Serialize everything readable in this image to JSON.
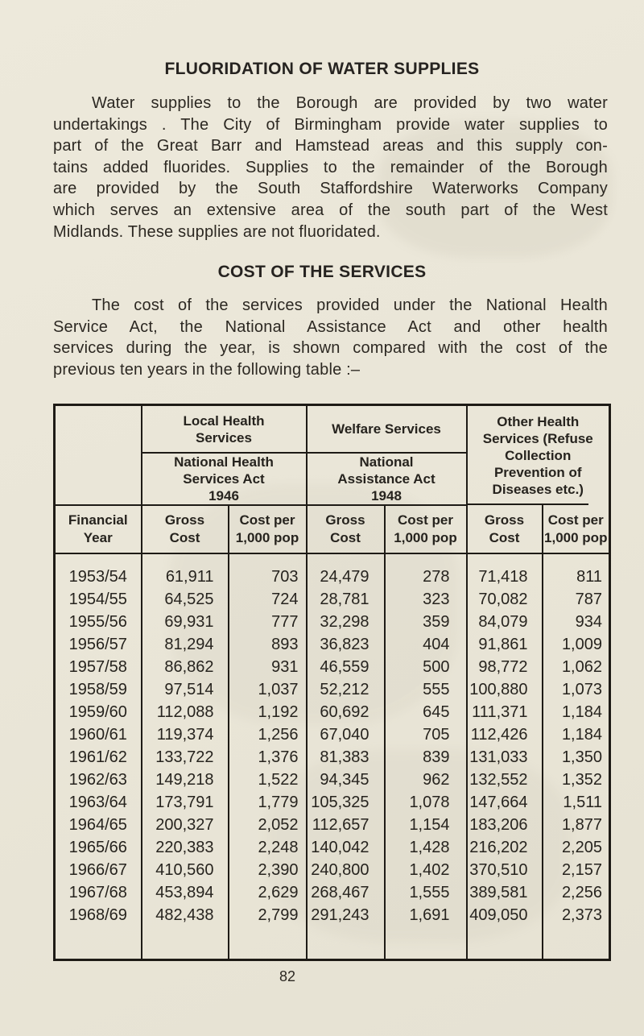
{
  "page": {
    "number": "82"
  },
  "colors": {
    "paper": "#eae6d8",
    "ink": "#2c2822",
    "table_border": "#1e1b16"
  },
  "sections": {
    "fluoridation": {
      "title": "FLUORIDATION OF WATER SUPPLIES",
      "lines": [
        "Water supplies to the Borough are provided by two water",
        "undertakings . The City of Birmingham provide water supplies to",
        "part of the Great Barr and Hamstead areas and this supply con-",
        "tains added fluorides. Supplies to the remainder of the Borough",
        "are provided by the South Staffordshire Waterworks Company",
        "which serves an extensive area of the south part of the West",
        "Midlands. These supplies are not fluoridated."
      ]
    },
    "cost": {
      "title": "COST OF THE SERVICES",
      "lines": [
        "The cost of the services provided under the National Health",
        "Service Act, the National Assistance Act and other health",
        "services during the year, is shown compared with the cost of the",
        "previous ten years in the following table :–"
      ]
    }
  },
  "table": {
    "header": {
      "group_local": "Local Health\nServices",
      "group_welfare": "Welfare Services",
      "group_other": "Other Health\nServices (Refuse\nCollection\nPrevention of\nDiseases etc.)",
      "act_nhs": "National Health\nServices Act\n1946",
      "act_assistance": "National\nAssistance Act\n1948",
      "col_year": "Financial\nYear",
      "col_gross": "Gross\nCost",
      "col_per": "Cost per\n1,000 pop"
    },
    "rows": [
      [
        "1953/54",
        "61,911",
        "703",
        "24,479",
        "278",
        "71,418",
        "811"
      ],
      [
        "1954/55",
        "64,525",
        "724",
        "28,781",
        "323",
        "70,082",
        "787"
      ],
      [
        "1955/56",
        "69,931",
        "777",
        "32,298",
        "359",
        "84,079",
        "934"
      ],
      [
        "1956/57",
        "81,294",
        "893",
        "36,823",
        "404",
        "91,861",
        "1,009"
      ],
      [
        "1957/58",
        "86,862",
        "931",
        "46,559",
        "500",
        "98,772",
        "1,062"
      ],
      [
        "1958/59",
        "97,514",
        "1,037",
        "52,212",
        "555",
        "100,880",
        "1,073"
      ],
      [
        "1959/60",
        "112,088",
        "1,192",
        "60,692",
        "645",
        "111,371",
        "1,184"
      ],
      [
        "1960/61",
        "119,374",
        "1,256",
        "67,040",
        "705",
        "112,426",
        "1,184"
      ],
      [
        "1961/62",
        "133,722",
        "1,376",
        "81,383",
        "839",
        "131,033",
        "1,350"
      ],
      [
        "1962/63",
        "149,218",
        "1,522",
        "94,345",
        "962",
        "132,552",
        "1,352"
      ],
      [
        "1963/64",
        "173,791",
        "1,779",
        "105,325",
        "1,078",
        "147,664",
        "1,511"
      ],
      [
        "1964/65",
        "200,327",
        "2,052",
        "112,657",
        "1,154",
        "183,206",
        "1,877"
      ],
      [
        "1965/66",
        "220,383",
        "2,248",
        "140,042",
        "1,428",
        "216,202",
        "2,205"
      ],
      [
        "1966/67",
        "410,560",
        "2,390",
        "240,800",
        "1,402",
        "370,510",
        "2,157"
      ],
      [
        "1967/68",
        "453,894",
        "2,629",
        "268,467",
        "1,555",
        "389,581",
        "2,256"
      ],
      [
        "1968/69",
        "482,438",
        "2,799",
        "291,243",
        "1,691",
        "409,050",
        "2,373"
      ]
    ]
  }
}
